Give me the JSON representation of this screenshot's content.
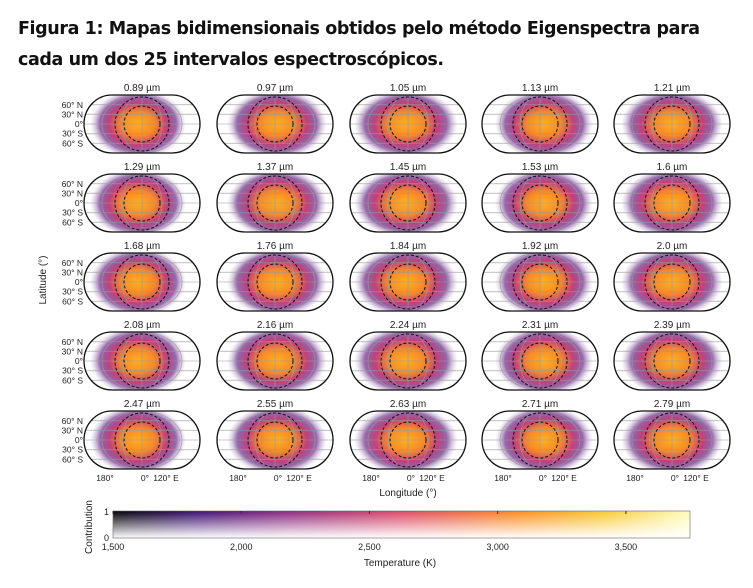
{
  "figure_title": "Figura 1: Mapas bidimensionais obtidos pelo método Eigenspectra para cada um dos 25 intervalos espectroscópicos.",
  "chart_data": {
    "type": "heatmap",
    "panels": [
      "0.89 µm",
      "0.97 µm",
      "1.05 µm",
      "1.13 µm",
      "1.21 µm",
      "1.29 µm",
      "1.37 µm",
      "1.45 µm",
      "1.53 µm",
      "1.6 µm",
      "1.68 µm",
      "1.76 µm",
      "1.84 µm",
      "1.92 µm",
      "2.0 µm",
      "2.08 µm",
      "2.16 µm",
      "2.24 µm",
      "2.31 µm",
      "2.39 µm",
      "2.47 µm",
      "2.55 µm",
      "2.63 µm",
      "2.71 µm",
      "2.79 µm"
    ],
    "ylabel": "Latitude (°)",
    "xlabel": "Longitude (°)",
    "lat_ticks": [
      "60° N",
      "30° N",
      "0°",
      "30° S",
      "60° S"
    ],
    "lon_ticks": [
      "180°",
      "0°",
      "120° E"
    ],
    "colorbar": {
      "xlabel": "Temperature (K)",
      "ylabel": "Contribution",
      "xlim": [
        1500,
        3750
      ],
      "x_ticks": [
        "1,500",
        "2,000",
        "2,500",
        "3,000",
        "3,500"
      ],
      "x_tick_values": [
        1500,
        2000,
        2500,
        3000,
        3500
      ],
      "y_ticks": [
        "0",
        "1"
      ],
      "colormap": "inferno",
      "colors": [
        "#000000",
        "#3b0f70",
        "#8c2981",
        "#de4968",
        "#fe9f6d",
        "#fcfdbf"
      ]
    }
  }
}
